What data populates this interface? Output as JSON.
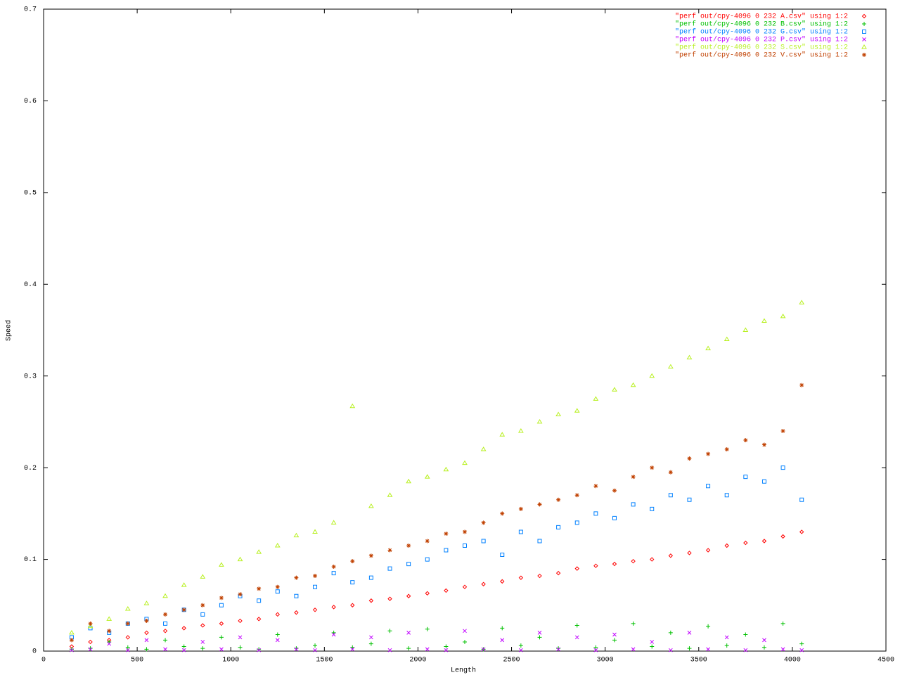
{
  "chart_data": {
    "type": "scatter",
    "xlabel": "Length",
    "ylabel": "Speed",
    "x": [
      150,
      250,
      350,
      450,
      550,
      650,
      750,
      850,
      950,
      1050,
      1150,
      1250,
      1350,
      1450,
      1550,
      1650,
      1750,
      1850,
      1950,
      2050,
      2150,
      2250,
      2350,
      2450,
      2550,
      2650,
      2750,
      2850,
      2950,
      3050,
      3150,
      3250,
      3350,
      3450,
      3550,
      3650,
      3750,
      3850,
      3950,
      4050
    ],
    "series": [
      {
        "name": "\"perf out/cpy-4096 0 232 A.csv\" using 1:2",
        "color": "#ff0000",
        "values": [
          0.005,
          0.01,
          0.012,
          0.015,
          0.02,
          0.022,
          0.025,
          0.028,
          0.03,
          0.033,
          0.035,
          0.04,
          0.042,
          0.045,
          0.048,
          0.05,
          0.055,
          0.057,
          0.06,
          0.063,
          0.066,
          0.07,
          0.073,
          0.076,
          0.08,
          0.082,
          0.085,
          0.09,
          0.093,
          0.095,
          0.098,
          0.1,
          0.104,
          0.107,
          0.11,
          0.115,
          0.118,
          0.12,
          0.125,
          0.13
        ]
      },
      {
        "name": "\"perf out/cpy-4096 0 232 B.csv\" using 1:2",
        "color": "#00c000",
        "values": [
          0.002,
          0.003,
          0.01,
          0.004,
          0.002,
          0.012,
          0.005,
          0.003,
          0.015,
          0.004,
          0.002,
          0.018,
          0.003,
          0.006,
          0.02,
          0.004,
          0.008,
          0.022,
          0.003,
          0.024,
          0.005,
          0.01,
          0.002,
          0.025,
          0.006,
          0.015,
          0.003,
          0.028,
          0.004,
          0.012,
          0.03,
          0.005,
          0.02,
          0.003,
          0.027,
          0.006,
          0.018,
          0.004,
          0.03,
          0.008
        ]
      },
      {
        "name": "\"perf out/cpy-4096 0 232 G.csv\" using 1:2",
        "color": "#0080ff",
        "values": [
          0.015,
          0.025,
          0.02,
          0.03,
          0.035,
          0.03,
          0.045,
          0.04,
          0.05,
          0.06,
          0.055,
          0.065,
          0.06,
          0.07,
          0.085,
          0.075,
          0.08,
          0.09,
          0.095,
          0.1,
          0.11,
          0.115,
          0.12,
          0.105,
          0.13,
          0.12,
          0.135,
          0.14,
          0.15,
          0.145,
          0.16,
          0.155,
          0.17,
          0.165,
          0.18,
          0.17,
          0.19,
          0.185,
          0.2,
          0.165
        ]
      },
      {
        "name": "\"perf out/cpy-4096 0 232 P.csv\" using 1:2",
        "color": "#c000ff",
        "values": [
          0.001,
          0.002,
          0.008,
          0.001,
          0.012,
          0.002,
          0.001,
          0.01,
          0.002,
          0.015,
          0.001,
          0.012,
          0.002,
          0.001,
          0.018,
          0.002,
          0.015,
          0.001,
          0.02,
          0.002,
          0.001,
          0.022,
          0.002,
          0.012,
          0.001,
          0.02,
          0.002,
          0.015,
          0.001,
          0.018,
          0.002,
          0.01,
          0.001,
          0.02,
          0.002,
          0.015,
          0.001,
          0.012,
          0.002,
          0.001
        ]
      },
      {
        "name": "\"perf out/cpy-4096 0 232 S.csv\" using 1:2",
        "color": "#b8f020",
        "values": [
          0.02,
          0.027,
          0.035,
          0.046,
          0.052,
          0.06,
          0.072,
          0.081,
          0.094,
          0.1,
          0.108,
          0.115,
          0.126,
          0.13,
          0.14,
          0.267,
          0.158,
          0.17,
          0.185,
          0.19,
          0.198,
          0.205,
          0.22,
          0.236,
          0.24,
          0.25,
          0.258,
          0.262,
          0.275,
          0.285,
          0.29,
          0.3,
          0.31,
          0.32,
          0.33,
          0.34,
          0.35,
          0.36,
          0.365,
          0.38
        ]
      },
      {
        "name": "\"perf out/cpy-4096 0 232 V.csv\" using 1:2",
        "color": "#c04000",
        "values": [
          0.012,
          0.03,
          0.022,
          0.03,
          0.033,
          0.04,
          0.045,
          0.05,
          0.058,
          0.062,
          0.068,
          0.07,
          0.08,
          0.082,
          0.092,
          0.098,
          0.104,
          0.11,
          0.115,
          0.12,
          0.128,
          0.13,
          0.14,
          0.15,
          0.155,
          0.16,
          0.165,
          0.17,
          0.18,
          0.175,
          0.19,
          0.2,
          0.195,
          0.21,
          0.215,
          0.22,
          0.23,
          0.225,
          0.24,
          0.29
        ]
      }
    ],
    "xlim": [
      0,
      4500
    ],
    "xticks": [
      0,
      500,
      1000,
      1500,
      2000,
      2500,
      3000,
      3500,
      4000,
      4500
    ],
    "ylim": [
      0,
      0.7
    ],
    "yticks": [
      0,
      0.1,
      0.2,
      0.3,
      0.4,
      0.5,
      0.6,
      0.7
    ],
    "legend": "top-right"
  }
}
